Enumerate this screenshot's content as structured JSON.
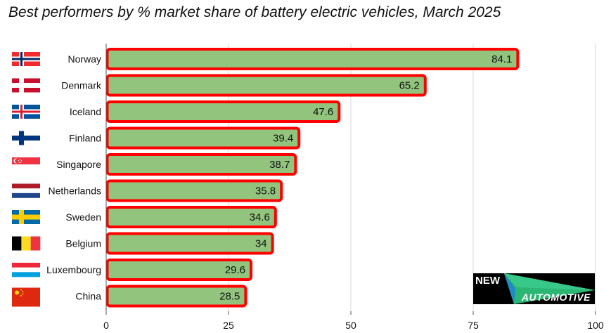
{
  "chart_data": {
    "type": "bar",
    "orientation": "horizontal",
    "title": "Best performers by % market share of battery electric vehicles, March 2025",
    "categories": [
      "Norway",
      "Denmark",
      "Iceland",
      "Finland",
      "Singapore",
      "Netherlands",
      "Sweden",
      "Belgium",
      "Luxembourg",
      "China"
    ],
    "values": [
      84.1,
      65.2,
      47.6,
      39.4,
      38.7,
      35.8,
      34.6,
      34,
      29.6,
      28.5
    ],
    "value_labels": [
      "84.1",
      "65.2",
      "47.6",
      "39.4",
      "38.7",
      "35.8",
      "34.6",
      "34",
      "29.6",
      "28.5"
    ],
    "xlim": [
      0,
      100
    ],
    "xticks": [
      0,
      25,
      50,
      75,
      100
    ],
    "xtick_labels": [
      "0",
      "25",
      "50",
      "75",
      "100"
    ],
    "grid": "vertical",
    "bar_color": "#92c47d",
    "bar_outline_color": "#ff0000",
    "flags": [
      "norway-flag",
      "denmark-flag",
      "iceland-flag",
      "finland-flag",
      "singapore-flag",
      "netherlands-flag",
      "sweden-flag",
      "belgium-flag",
      "luxembourg-flag",
      "china-flag"
    ]
  },
  "logo": {
    "word1": "NEW",
    "word2": "AUTOMOTIVE"
  }
}
